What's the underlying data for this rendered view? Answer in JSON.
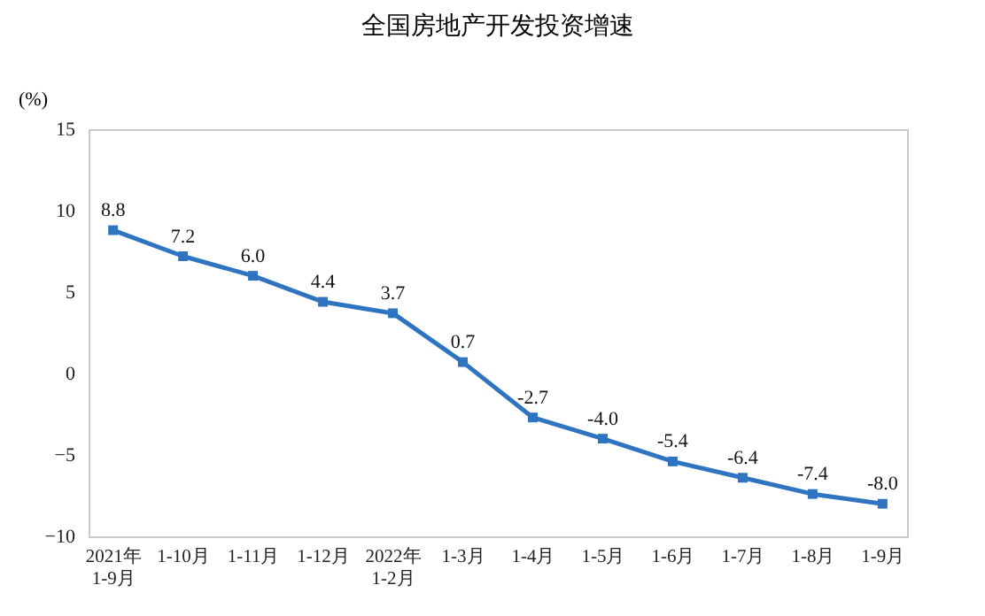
{
  "chart_data": {
    "type": "line",
    "title": "全国房地产开发投资增速",
    "ylabel": "(%)",
    "categories": [
      "2021年\n1-9月",
      "1-10月",
      "1-11月",
      "1-12月",
      "2022年\n1-2月",
      "1-3月",
      "1-4月",
      "1-5月",
      "1-6月",
      "1-7月",
      "1-8月",
      "1-9月"
    ],
    "series": [
      {
        "color": "#2e74c0",
        "values": [
          8.8,
          7.2,
          6.0,
          4.4,
          3.7,
          0.7,
          -2.7,
          -4.0,
          -5.4,
          -6.4,
          -7.4,
          -8.0
        ],
        "value_labels": [
          "8.8",
          "7.2",
          "6.0",
          "4.4",
          "3.7",
          "0.7",
          "-2.7",
          "-4.0",
          "-5.4",
          "-6.4",
          "-7.4",
          "-8.0"
        ]
      }
    ],
    "ylim": [
      -10,
      15
    ],
    "yticks": [
      -10,
      -5,
      0,
      5,
      10,
      15
    ],
    "grid": false,
    "legend": false,
    "marker": "square",
    "line_style": "solid"
  }
}
